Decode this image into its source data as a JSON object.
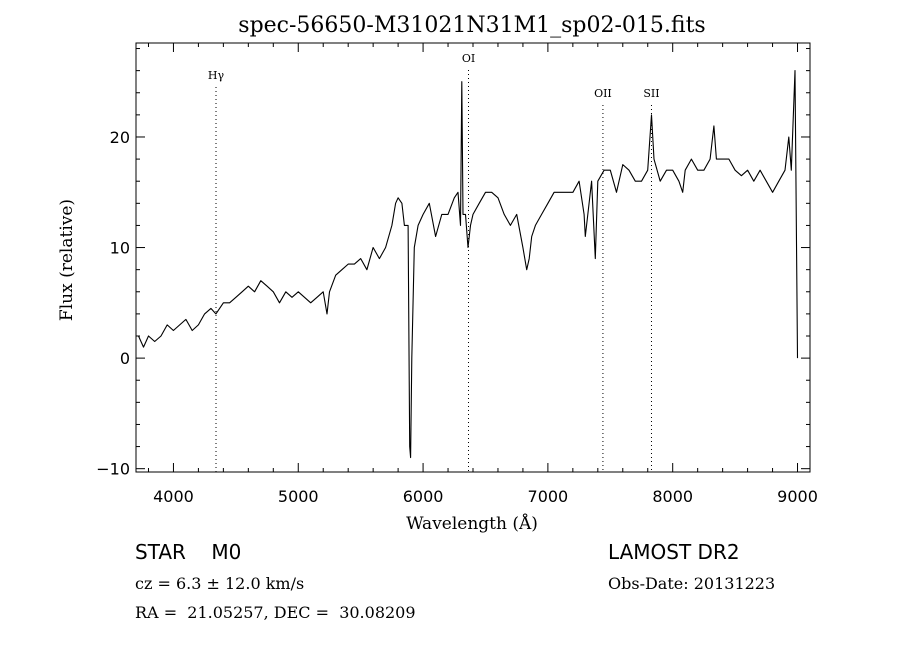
{
  "chart_data": {
    "type": "line",
    "title": "spec-56650-M31021N31M1_sp02-015.fits",
    "xlabel": "Wavelength (Å)",
    "ylabel": "Flux (relative)",
    "xlim": [
      3700,
      9100
    ],
    "ylim": [
      -10.3,
      28.5
    ],
    "xticks": [
      4000,
      5000,
      6000,
      7000,
      8000,
      9000
    ],
    "yticks": [
      -10,
      0,
      10,
      20
    ],
    "lines": [
      {
        "label": "Hγ",
        "x": 4341
      },
      {
        "label": "OI",
        "x": 6364
      },
      {
        "label": "OII",
        "x": 7441
      },
      {
        "label": "SII",
        "x": 7830
      }
    ],
    "series": [
      {
        "x": [
          3720,
          3760,
          3800,
          3850,
          3900,
          3950,
          4000,
          4050,
          4100,
          4150,
          4200,
          4250,
          4300,
          4340,
          4400,
          4450,
          4500,
          4550,
          4600,
          4650,
          4700,
          4750,
          4800,
          4850,
          4900,
          4950,
          5000,
          5050,
          5100,
          5150,
          5200,
          5230,
          5250,
          5300,
          5350,
          5400,
          5450,
          5500,
          5550,
          5600,
          5650,
          5700,
          5750,
          5780,
          5800,
          5830,
          5850,
          5880,
          5893,
          5900,
          5910,
          5930,
          5960,
          6000,
          6050,
          6100,
          6150,
          6200,
          6250,
          6280,
          6300,
          6310,
          6320,
          6340,
          6360,
          6380,
          6400,
          6450,
          6500,
          6550,
          6600,
          6650,
          6700,
          6750,
          6800,
          6830,
          6850,
          6870,
          6900,
          6950,
          7000,
          7050,
          7100,
          7150,
          7200,
          7250,
          7290,
          7300,
          7350,
          7380,
          7400,
          7450,
          7500,
          7550,
          7600,
          7650,
          7700,
          7750,
          7800,
          7830,
          7850,
          7900,
          7950,
          8000,
          8050,
          8080,
          8100,
          8150,
          8200,
          8250,
          8300,
          8330,
          8350,
          8400,
          8450,
          8500,
          8550,
          8600,
          8650,
          8700,
          8750,
          8800,
          8850,
          8900,
          8930,
          8950,
          8980,
          9000
        ],
        "y": [
          2,
          1,
          2,
          1.5,
          2,
          3,
          2.5,
          3,
          3.5,
          2.5,
          3,
          4,
          4.5,
          4,
          5,
          5,
          5.5,
          6,
          6.5,
          6,
          7,
          6.5,
          6,
          5,
          6,
          5.5,
          6,
          5.5,
          5,
          5.5,
          6,
          4,
          6,
          7.5,
          8,
          8.5,
          8.5,
          9,
          8,
          10,
          9,
          10,
          12,
          14,
          14.5,
          14,
          12,
          12,
          -8,
          -9,
          0,
          10,
          12,
          13,
          14,
          11,
          13,
          13,
          14.5,
          15,
          12,
          25,
          13,
          13,
          10,
          12,
          13,
          14,
          15,
          15,
          14.5,
          13,
          12,
          13,
          10,
          8,
          9,
          11,
          12,
          13,
          14,
          15,
          15,
          15,
          15,
          16,
          13,
          11,
          16,
          9,
          16,
          17,
          17,
          15,
          17.5,
          17,
          16,
          16,
          17,
          22,
          18,
          16,
          17,
          17,
          16,
          15,
          17,
          18,
          17,
          17,
          18,
          21,
          18,
          18,
          18,
          17,
          16.5,
          17,
          16,
          17,
          16,
          15,
          16,
          17,
          20,
          17,
          26,
          0
        ]
      }
    ]
  },
  "info": {
    "class_line": "STAR    M0",
    "cz_line": "cz = 6.3 ± 12.0 km/s",
    "radec_line": "RA =  21.05257, DEC =  30.08209",
    "survey": "LAMOST DR2",
    "obs_date": "Obs-Date: 20131223"
  }
}
